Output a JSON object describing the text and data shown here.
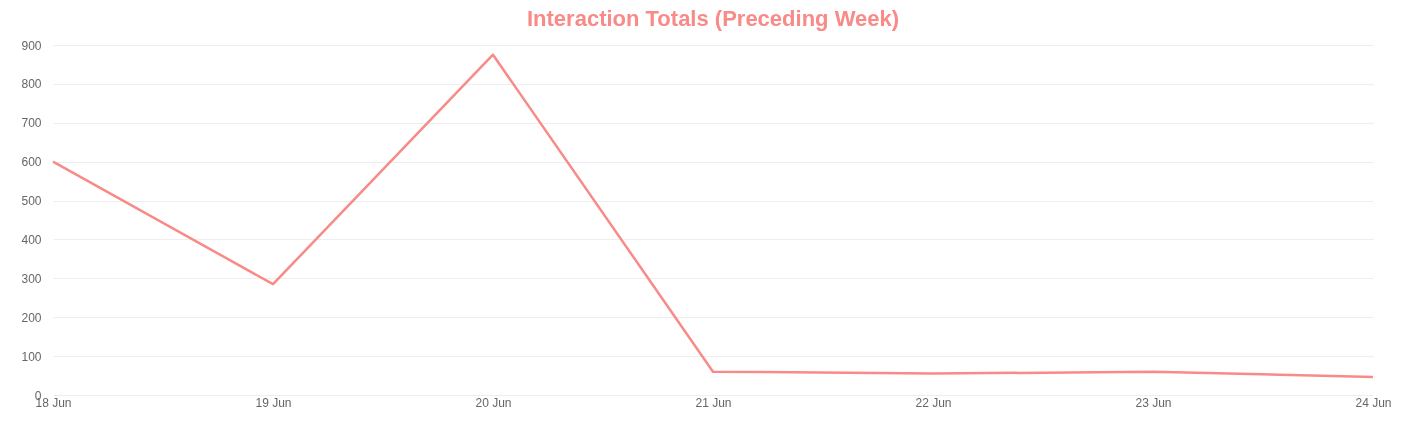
{
  "chart_data": {
    "type": "line",
    "title": "Interaction Totals (Preceding Week)",
    "categories": [
      "18 Jun",
      "19 Jun",
      "20 Jun",
      "21 Jun",
      "22 Jun",
      "23 Jun",
      "24 Jun"
    ],
    "series": [
      {
        "color": "#f88a88",
        "values": [
          600,
          285,
          875,
          60,
          55,
          60,
          46
        ]
      }
    ],
    "ylim": [
      0,
      900
    ],
    "yticks": [
      0,
      100,
      200,
      300,
      400,
      500,
      600,
      700,
      800,
      900
    ],
    "grid": "y",
    "legend": false
  }
}
